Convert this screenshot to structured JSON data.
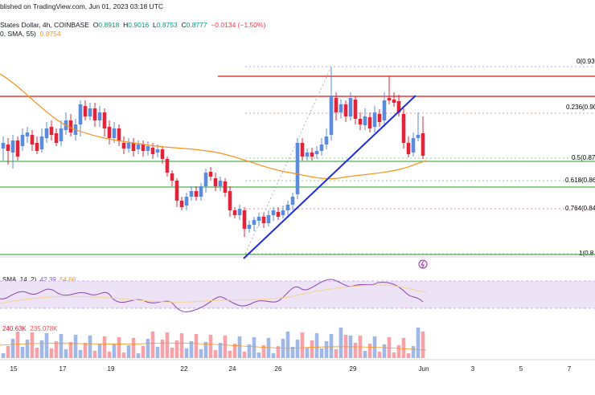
{
  "header": {
    "line1": "blished on TradingView.com, Jun 01, 2023 03:18 UTC",
    "symbol": "States Dollar, 4h, COINBASE",
    "o_label": "O",
    "o_val": "0.8918",
    "h_label": "H",
    "h_val": "0.9016",
    "l_label": "L",
    "l_val": "0.8753",
    "c_label": "C",
    "c_val": "0.8777",
    "change": "−0.0134 (−1.50%)",
    "sma_line": "0, SMA, 55)",
    "sma_val": "0.8754"
  },
  "fib_levels": [
    {
      "label": "0(0.93",
      "color": "#787b86"
    },
    {
      "label": "0.236(0.90",
      "color": "#f23645"
    },
    {
      "label": "0.5(0.87",
      "color": "#089981"
    },
    {
      "label": "0.618(0.86",
      "color": "#089981"
    },
    {
      "label": "0.764(0.84",
      "color": "#f23645"
    },
    {
      "label": "1(0.8",
      "color": "#787b86"
    }
  ],
  "rsi": {
    "label": "SMA, 14, 2)",
    "val1": "42.39",
    "val2": "54.66"
  },
  "volume": {
    "val1": "240.63K",
    "val2": "235.078K"
  },
  "x_axis": [
    "15",
    "17",
    "19",
    "22",
    "24",
    "26",
    "29",
    "Jun",
    "3",
    "5",
    "7"
  ],
  "colors": {
    "up": "#5b8bdb",
    "down": "#e0243a",
    "sma": "#f7931a",
    "support": "#4caf50",
    "resistance": "#e53935",
    "trendline": "#1e2edb",
    "rsi_band": "#ede3f7",
    "rsi_line": "#8e44ad"
  },
  "icons": [
    "lightning-icon"
  ]
}
